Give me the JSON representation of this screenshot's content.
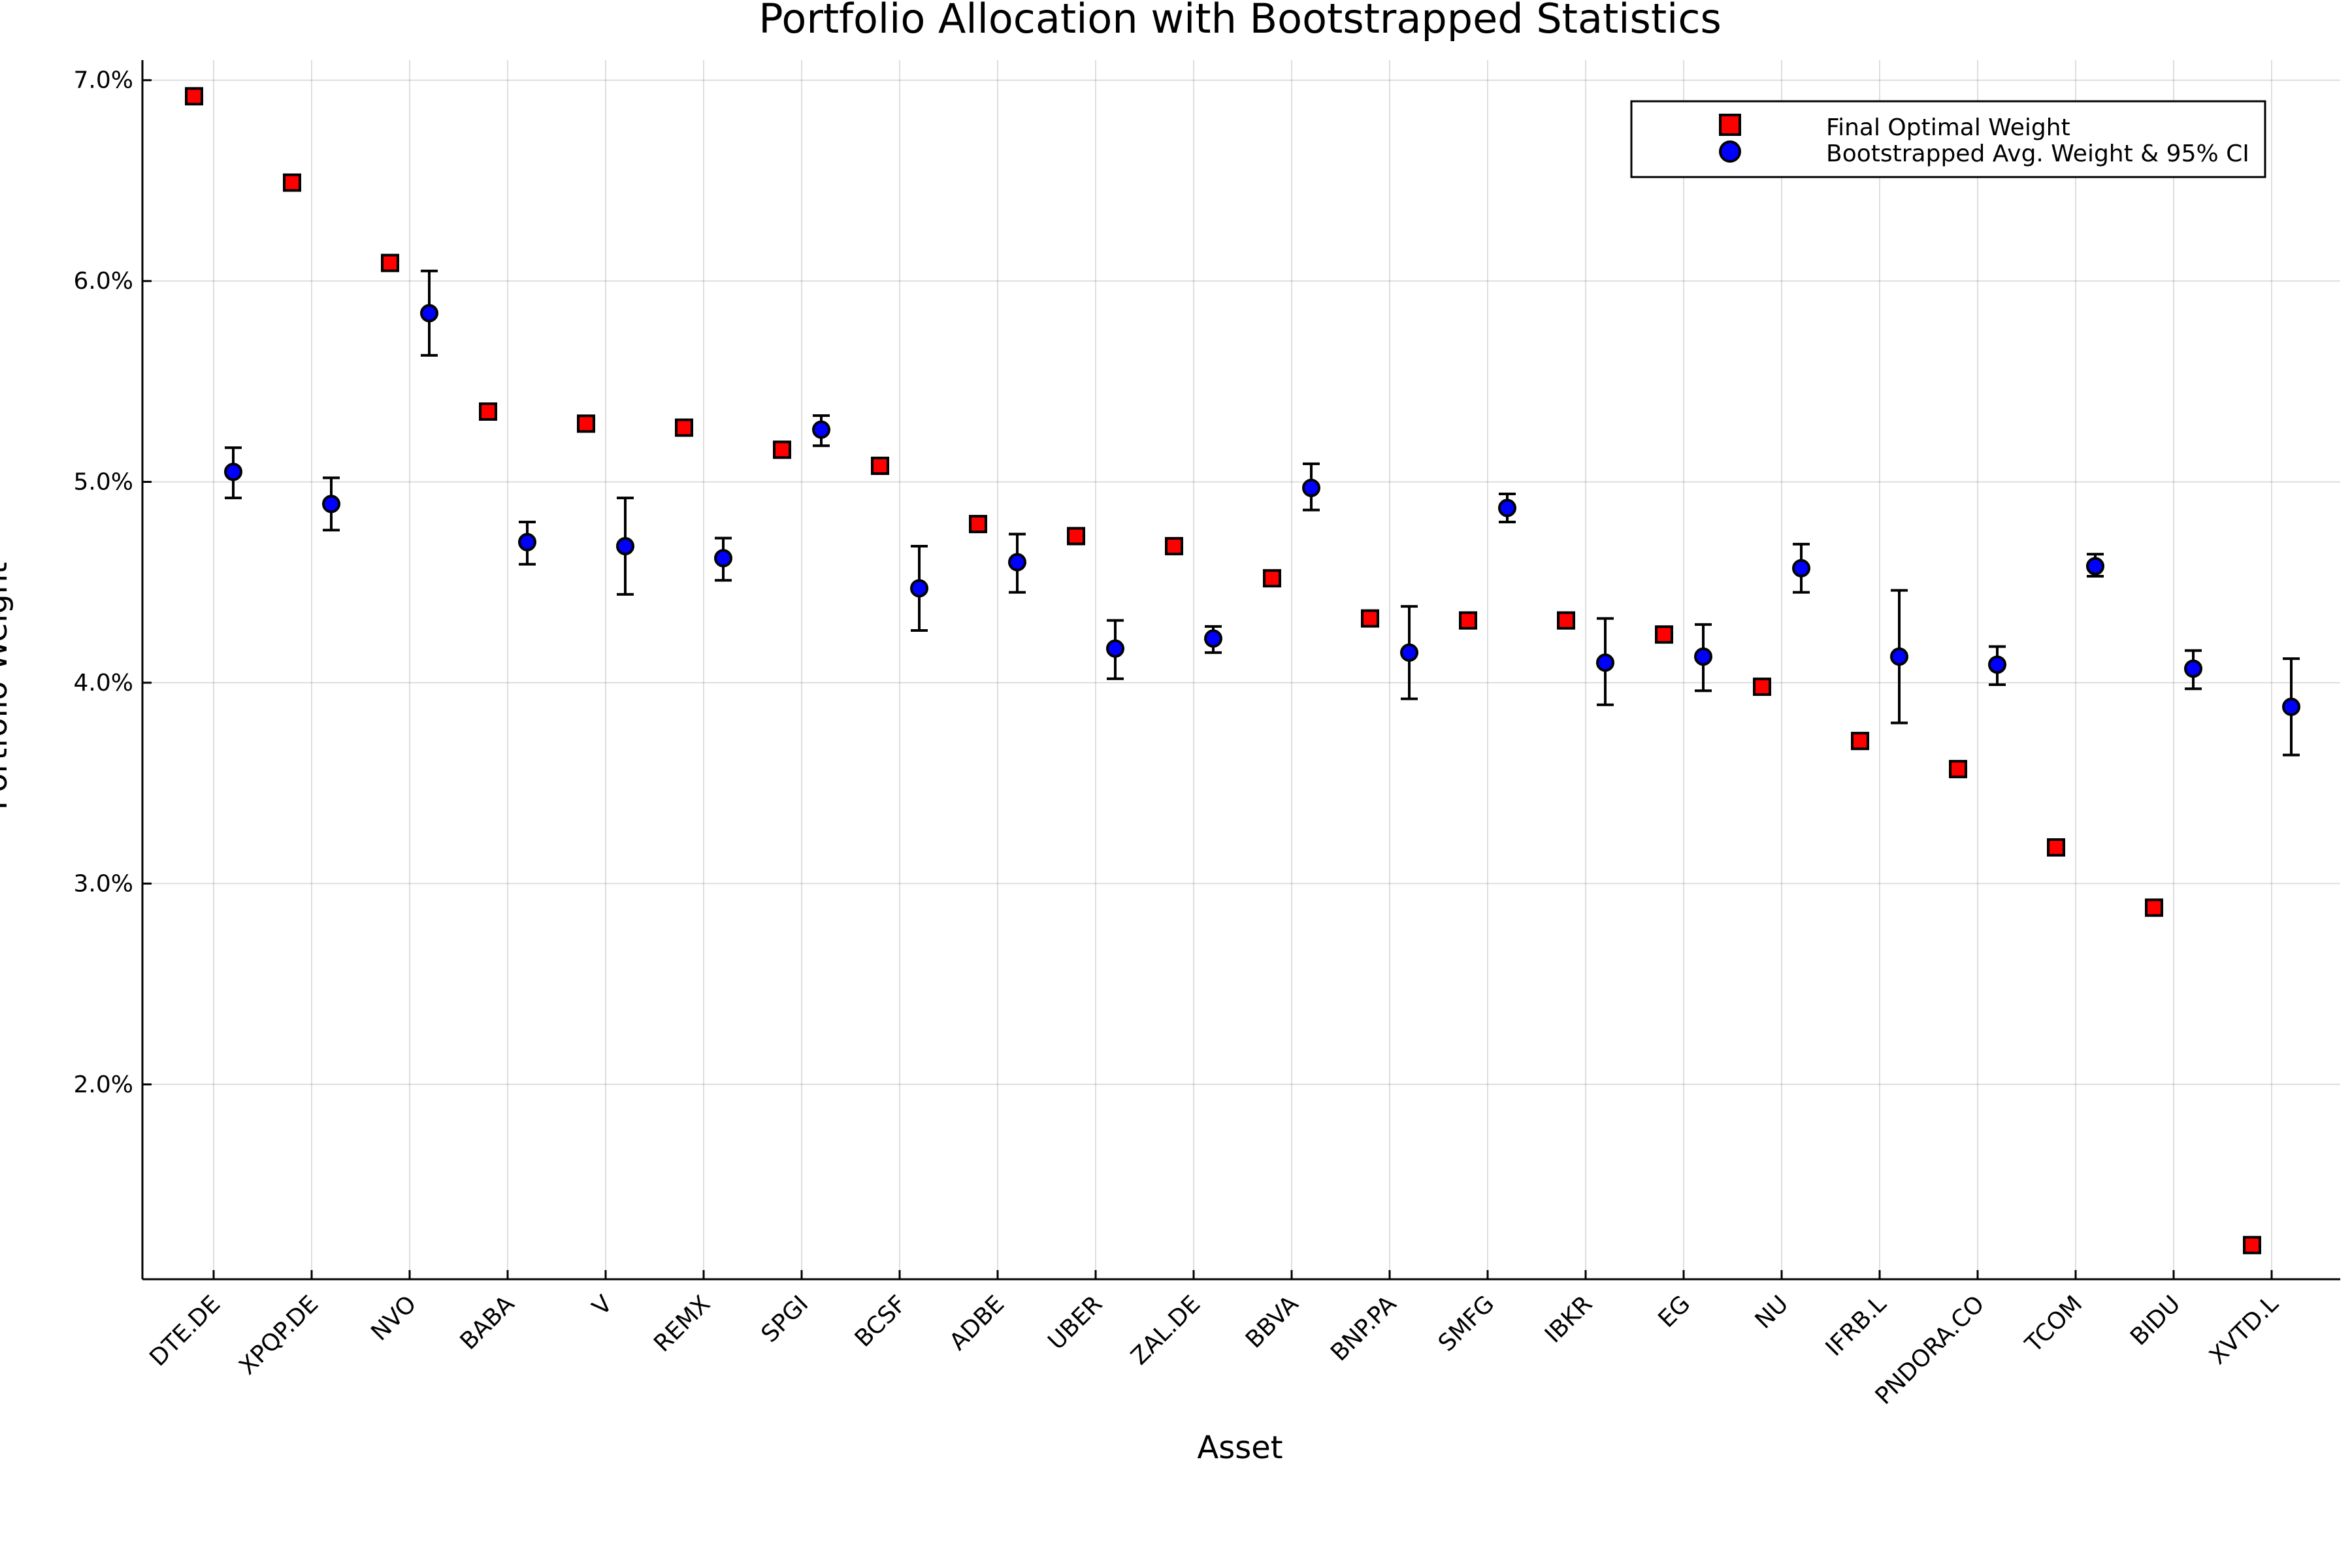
{
  "chart_data": {
    "type": "scatter",
    "title": "Portfolio Allocation with Bootstrapped Statistics",
    "xlabel": "Asset",
    "ylabel": "Portfolio Weight",
    "ylim": [
      1.03,
      7.1
    ],
    "yticks": [
      2.0,
      3.0,
      4.0,
      5.0,
      6.0,
      7.0
    ],
    "ytick_labels": [
      "2.0%",
      "3.0%",
      "4.0%",
      "5.0%",
      "6.0%",
      "7.0%"
    ],
    "grid": true,
    "legend_position": "top-right",
    "categories": [
      "DTE.DE",
      "XPQP.DE",
      "NVO",
      "BABA",
      "V",
      "REMX",
      "SPGI",
      "BCSF",
      "ADBE",
      "UBER",
      "ZAL.DE",
      "BBVA",
      "BNP.PA",
      "SMFG",
      "IBKR",
      "EG",
      "NU",
      "IFRB.L",
      "PNDORA.CO",
      "TCOM",
      "BIDU",
      "XVTD.L"
    ],
    "series": [
      {
        "name": "Final Optimal Weight",
        "marker": "square",
        "color": "#ff0000",
        "values": [
          6.92,
          6.49,
          6.09,
          5.35,
          5.29,
          5.27,
          5.16,
          5.08,
          4.79,
          4.73,
          4.68,
          4.52,
          4.32,
          4.31,
          4.31,
          4.24,
          3.98,
          3.71,
          3.57,
          3.18,
          2.88,
          1.2
        ]
      },
      {
        "name": "Bootstrapped Avg. Weight & 95% CI",
        "marker": "circle",
        "color": "#0000ff",
        "values": [
          5.05,
          4.89,
          5.84,
          4.7,
          4.68,
          4.62,
          5.26,
          4.47,
          4.6,
          4.17,
          4.22,
          4.97,
          4.15,
          4.87,
          4.1,
          4.13,
          4.57,
          4.13,
          4.09,
          4.58,
          4.07,
          3.88
        ],
        "ci_low": [
          4.92,
          4.76,
          5.63,
          4.59,
          4.44,
          4.51,
          5.18,
          4.26,
          4.45,
          4.02,
          4.15,
          4.86,
          3.92,
          4.8,
          3.89,
          3.96,
          4.45,
          3.8,
          3.99,
          4.53,
          3.97,
          3.64
        ],
        "ci_high": [
          5.17,
          5.02,
          6.05,
          4.8,
          4.92,
          4.72,
          5.33,
          4.68,
          4.74,
          4.31,
          4.28,
          5.09,
          4.38,
          4.94,
          4.32,
          4.29,
          4.69,
          4.46,
          4.18,
          4.64,
          4.16,
          4.12
        ]
      }
    ]
  }
}
